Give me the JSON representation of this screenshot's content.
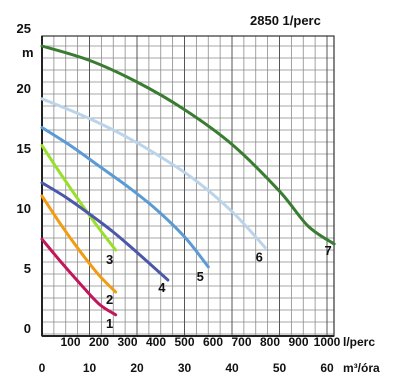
{
  "chart_data": {
    "type": "line",
    "title": "2850 1/perc",
    "ylabel": "m",
    "xlabel": "m³/óra",
    "xlabel_secondary": "l/perc",
    "xlim": [
      0,
      62
    ],
    "ylim": [
      0,
      25
    ],
    "y_ticks": [
      "0",
      "5",
      "10",
      "15",
      "20",
      "25"
    ],
    "x_ticks": [
      "0",
      "10",
      "20",
      "30",
      "40",
      "50",
      "60"
    ],
    "x_secondary_ticks": [
      "100",
      "200",
      "300",
      "400",
      "500",
      "600",
      "700",
      "800",
      "900",
      "1000"
    ],
    "grid": true,
    "series": [
      {
        "name": "1",
        "color": "#c2185b",
        "x": [
          0,
          4,
          8,
          12,
          15.5
        ],
        "y": [
          7.4,
          5.5,
          3.7,
          2.0,
          1.1
        ]
      },
      {
        "name": "2",
        "color": "#f39c12",
        "x": [
          0,
          4,
          8,
          12,
          15.5
        ],
        "y": [
          11.0,
          8.6,
          6.4,
          4.4,
          3.0
        ]
      },
      {
        "name": "3",
        "color": "#99e02a",
        "x": [
          0,
          4,
          8,
          12,
          15.5
        ],
        "y": [
          15.2,
          12.8,
          10.5,
          8.3,
          6.5
        ]
      },
      {
        "name": "4",
        "color": "#4b57a8",
        "x": [
          0,
          5,
          10,
          15,
          20,
          26.5
        ],
        "y": [
          12.1,
          10.9,
          9.5,
          8.0,
          6.3,
          4.0
        ]
      },
      {
        "name": "5",
        "color": "#5b9bd5",
        "x": [
          0,
          6,
          12,
          18,
          24,
          30,
          35
        ],
        "y": [
          16.7,
          15.2,
          13.5,
          11.8,
          9.9,
          7.6,
          5.1
        ]
      },
      {
        "name": "6",
        "color": "#bcd4ea",
        "x": [
          0,
          8,
          16,
          24,
          32,
          40,
          47
        ],
        "y": [
          19.1,
          17.8,
          16.3,
          14.5,
          12.4,
          9.7,
          6.7
        ]
      },
      {
        "name": "7",
        "color": "#3a7d32",
        "x": [
          0,
          10,
          20,
          30,
          40,
          50,
          56,
          61.5
        ],
        "y": [
          23.5,
          22.3,
          20.5,
          18.2,
          15.3,
          11.4,
          8.5,
          7.0
        ]
      }
    ]
  }
}
